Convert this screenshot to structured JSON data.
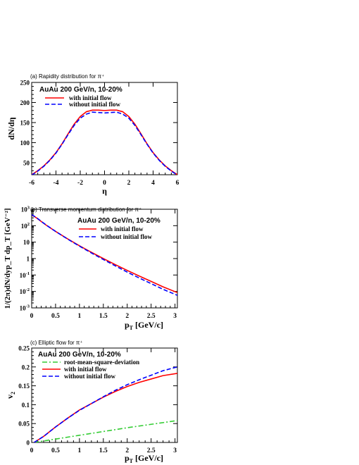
{
  "chart_data": [
    {
      "type": "line",
      "title": "(a) Rapidity distribution for π⁺",
      "xlabel": "η",
      "ylabel": "dN/dη",
      "xlim": [
        -6,
        6
      ],
      "ylim": [
        20,
        250
      ],
      "log_y": false,
      "x_ticks": [
        -6,
        -4,
        -2,
        0,
        2,
        4,
        6
      ],
      "x_tick_labels": [
        "-6",
        "-4",
        "-2",
        "0",
        "2",
        "4",
        "6"
      ],
      "y_ticks": [
        50,
        100,
        150,
        200,
        250
      ],
      "y_tick_labels": [
        "50",
        "100",
        "150",
        "200",
        "250"
      ],
      "legend_header": "AuAu 200 GeV/n, 10-20%",
      "legend_position": "top-left",
      "series": [
        {
          "name": "with initial flow",
          "color": "#ff0000",
          "dash": "solid",
          "x": [
            -6,
            -5.5,
            -5,
            -4.5,
            -4,
            -3.5,
            -3,
            -2.5,
            -2,
            -1.5,
            -1,
            -0.5,
            0,
            0.5,
            1,
            1.5,
            2,
            2.5,
            3,
            3.5,
            4,
            4.5,
            5,
            5.5,
            6
          ],
          "y": [
            20,
            30,
            42,
            57,
            75,
            97,
            122,
            146,
            165,
            177,
            181,
            181,
            180,
            181,
            181,
            177,
            165,
            146,
            122,
            97,
            75,
            57,
            42,
            30,
            20
          ]
        },
        {
          "name": "without initial flow",
          "color": "#0000ff",
          "dash": "dashed",
          "x": [
            -6,
            -5.5,
            -5,
            -4.5,
            -4,
            -3.5,
            -3,
            -2.5,
            -2,
            -1.5,
            -1,
            -0.5,
            0,
            0.5,
            1,
            1.5,
            2,
            2.5,
            3,
            3.5,
            4,
            4.5,
            5,
            5.5,
            6
          ],
          "y": [
            19,
            29,
            41,
            56,
            74,
            96,
            120,
            143,
            161,
            171,
            176,
            175,
            174,
            175,
            176,
            171,
            161,
            143,
            120,
            96,
            74,
            56,
            41,
            29,
            19
          ]
        }
      ]
    },
    {
      "type": "line",
      "title": "(b) Transverse momentum distribution for π⁺",
      "xlabel": "pT [GeV/c]",
      "ylabel": "1/(2π)dN/dyp_T dp_T [GeV⁻²]",
      "xlim": [
        0,
        3.05
      ],
      "ylim": [
        0.001,
        1000
      ],
      "log_y": true,
      "x_ticks": [
        0,
        0.5,
        1,
        1.5,
        2,
        2.5,
        3
      ],
      "x_tick_labels": [
        "0",
        "0.5",
        "1",
        "1.5",
        "2",
        "2.5",
        "3"
      ],
      "y_ticks": [
        0.001,
        0.01,
        0.1,
        1,
        10,
        100,
        1000
      ],
      "y_tick_labels": [
        {
          "base": "10",
          "exp": "-3"
        },
        {
          "base": "10",
          "exp": "-2"
        },
        {
          "base": "10",
          "exp": "-1"
        },
        {
          "base": "1",
          "exp": ""
        },
        {
          "base": "10",
          "exp": ""
        },
        {
          "base": "10",
          "exp": "2"
        },
        {
          "base": "10",
          "exp": "3"
        }
      ],
      "legend_header": "AuAu 200 GeV/n, 10-20%",
      "legend_position": "top-right",
      "series": [
        {
          "name": "with initial flow",
          "color": "#ff0000",
          "dash": "solid",
          "x": [
            0,
            0.1,
            0.2,
            0.3,
            0.5,
            0.75,
            1,
            1.25,
            1.5,
            1.75,
            2,
            2.25,
            2.5,
            2.75,
            3.05
          ],
          "y": [
            450,
            300,
            180,
            110,
            45,
            16,
            6,
            2.4,
            1.0,
            0.43,
            0.19,
            0.087,
            0.041,
            0.019,
            0.0085
          ]
        },
        {
          "name": "without initial flow",
          "color": "#0000ff",
          "dash": "dashed",
          "x": [
            0,
            0.1,
            0.2,
            0.3,
            0.5,
            0.75,
            1,
            1.25,
            1.5,
            1.75,
            2,
            2.25,
            2.5,
            2.75,
            3.05
          ],
          "y": [
            470,
            310,
            185,
            112,
            45,
            15.5,
            5.7,
            2.2,
            0.88,
            0.36,
            0.15,
            0.066,
            0.03,
            0.0135,
            0.0058
          ]
        }
      ]
    },
    {
      "type": "line",
      "title": "(c) Elliptic flow for π⁺",
      "xlabel": "pT [GeV/c]",
      "ylabel": "v2",
      "xlim": [
        0,
        3.05
      ],
      "ylim": [
        0,
        0.25
      ],
      "log_y": false,
      "x_ticks": [
        0,
        0.5,
        1,
        1.5,
        2,
        2.5,
        3
      ],
      "x_tick_labels": [
        "0",
        "0.5",
        "1",
        "1.5",
        "2",
        "2.5",
        "3"
      ],
      "y_ticks": [
        0,
        0.05,
        0.1,
        0.15,
        0.2,
        0.25
      ],
      "y_tick_labels": [
        "0",
        "0.05",
        "0.1",
        "0.15",
        "0.2",
        "0.25"
      ],
      "legend_header": "AuAu 200 GeV/n, 10-20%",
      "legend_position": "top-left",
      "series": [
        {
          "name": "root-mean-square-deviation",
          "color": "#33cc33",
          "dash": "dashdot",
          "x": [
            0.05,
            0.5,
            1,
            1.5,
            2,
            2.5,
            3.05
          ],
          "y": [
            0,
            0.009,
            0.019,
            0.029,
            0.039,
            0.048,
            0.058
          ]
        },
        {
          "name": "with initial flow",
          "color": "#ff0000",
          "dash": "solid",
          "x": [
            0.05,
            0.25,
            0.5,
            0.75,
            1,
            1.25,
            1.5,
            1.75,
            2,
            2.25,
            2.5,
            2.75,
            3.05
          ],
          "y": [
            0,
            0.016,
            0.041,
            0.064,
            0.086,
            0.103,
            0.12,
            0.135,
            0.148,
            0.159,
            0.168,
            0.177,
            0.183
          ]
        },
        {
          "name": "without initial flow",
          "color": "#0000ff",
          "dash": "dashed",
          "x": [
            0.05,
            0.25,
            0.5,
            0.75,
            1,
            1.25,
            1.5,
            1.75,
            2,
            2.25,
            2.5,
            2.75,
            3.05
          ],
          "y": [
            0,
            0.016,
            0.041,
            0.064,
            0.085,
            0.103,
            0.121,
            0.138,
            0.153,
            0.166,
            0.178,
            0.19,
            0.2
          ]
        }
      ]
    }
  ]
}
